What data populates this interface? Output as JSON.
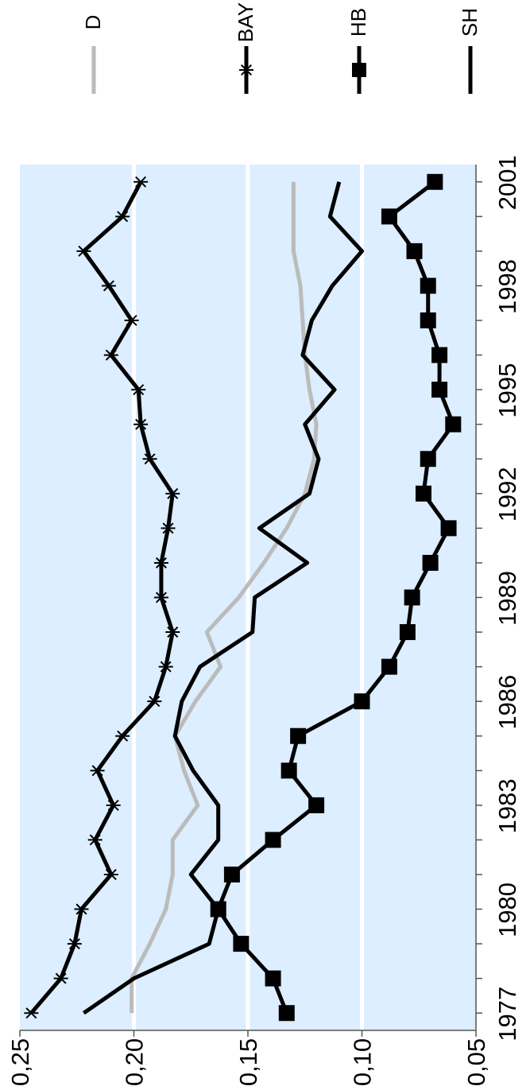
{
  "chart_data": {
    "type": "line",
    "x": [
      1977,
      1978,
      1979,
      1980,
      1981,
      1982,
      1983,
      1984,
      1985,
      1986,
      1987,
      1988,
      1989,
      1990,
      1991,
      1992,
      1993,
      1994,
      1995,
      1996,
      1997,
      1998,
      1999,
      2000,
      2001
    ],
    "x_ticks": [
      "1977",
      "1980",
      "1983",
      "1986",
      "1989",
      "1992",
      "1995",
      "1998",
      "2001"
    ],
    "y_ticks": [
      "0,05",
      "0,10",
      "0,15",
      "0,20",
      "0,25"
    ],
    "ylim": [
      0.05,
      0.25
    ],
    "xlim": [
      1976.5,
      2001.5
    ],
    "grid": true,
    "grid_color": "#ffffff",
    "plot_background": "#dceeff",
    "orientation": "rotated-90-ccw",
    "legend_position": "top",
    "series": [
      {
        "name": "D",
        "color": "#bbbbbb",
        "marker": "none",
        "values": [
          0.201,
          0.201,
          0.193,
          0.186,
          0.183,
          0.183,
          0.172,
          0.178,
          0.182,
          0.173,
          0.162,
          0.168,
          0.154,
          0.143,
          0.133,
          0.125,
          0.121,
          0.12,
          0.123,
          0.125,
          0.126,
          0.127,
          0.13,
          0.13,
          0.13
        ]
      },
      {
        "name": "BAY",
        "color": "#000000",
        "marker": "star",
        "values": [
          0.245,
          0.232,
          0.226,
          0.223,
          0.21,
          0.217,
          0.209,
          0.216,
          0.205,
          0.191,
          0.186,
          0.183,
          0.188,
          0.188,
          0.185,
          0.183,
          0.193,
          0.197,
          0.198,
          0.21,
          0.201,
          0.211,
          0.222,
          0.205,
          0.197
        ]
      },
      {
        "name": "HB",
        "color": "#000000",
        "marker": "square",
        "values": [
          0.133,
          0.139,
          0.153,
          0.163,
          0.157,
          0.139,
          0.12,
          0.132,
          0.128,
          0.1,
          0.088,
          0.08,
          0.078,
          0.07,
          0.062,
          0.073,
          0.071,
          0.06,
          0.066,
          0.066,
          0.071,
          0.071,
          0.077,
          0.088,
          0.068
        ]
      },
      {
        "name": "SH",
        "color": "#000000",
        "marker": "none",
        "values": [
          0.222,
          0.2,
          0.167,
          0.163,
          0.175,
          0.163,
          0.163,
          0.174,
          0.182,
          0.179,
          0.171,
          0.148,
          0.147,
          0.124,
          0.145,
          0.123,
          0.119,
          0.125,
          0.112,
          0.126,
          0.122,
          0.113,
          0.1,
          0.114,
          0.11
        ]
      }
    ]
  }
}
